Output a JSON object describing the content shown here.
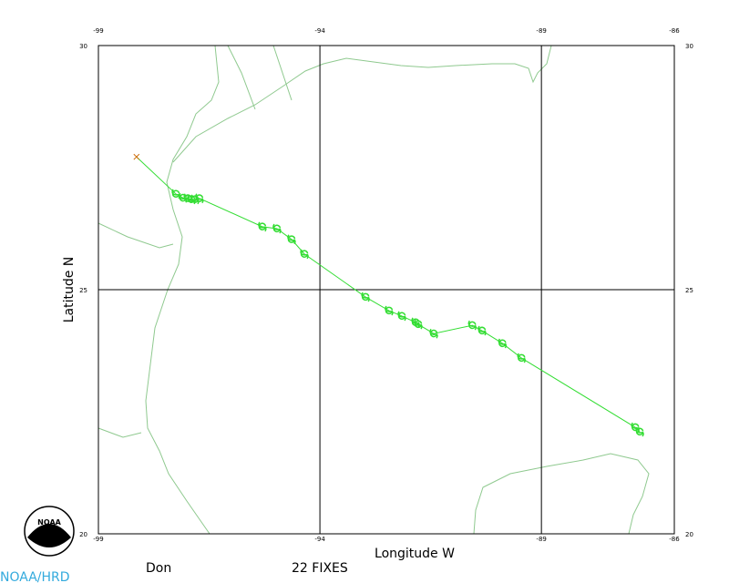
{
  "map": {
    "storm_name": "Don",
    "fix_count_label": "22 FIXES",
    "credit": "NOAA/HRD",
    "logo_text": "NOAA",
    "xlabel": "Longitude W",
    "ylabel": "Latitude N",
    "xlim": [
      -99,
      -86
    ],
    "ylim": [
      20,
      30
    ],
    "xticks": [
      -99,
      -94,
      -89,
      -86
    ],
    "yticks": [
      20,
      25,
      30
    ],
    "track_color": "#33dd33",
    "track_start": {
      "lon": -98.14,
      "lat": 27.72
    },
    "fixes": {
      "lon": [
        -97.25,
        -97.09,
        -96.98,
        -96.9,
        -96.82,
        -96.72,
        -95.3,
        -94.97,
        -94.64,
        -94.35,
        -92.97,
        -92.44,
        -92.15,
        -91.84,
        -91.78,
        -91.43,
        -90.56,
        -90.34,
        -89.88,
        -89.45,
        -86.88,
        -86.78
      ],
      "lat": [
        26.96,
        26.88,
        26.87,
        26.85,
        26.85,
        26.87,
        26.29,
        26.25,
        26.03,
        25.73,
        24.85,
        24.57,
        24.46,
        24.33,
        24.29,
        24.1,
        24.27,
        24.16,
        23.9,
        23.6,
        22.18,
        22.09
      ]
    }
  }
}
